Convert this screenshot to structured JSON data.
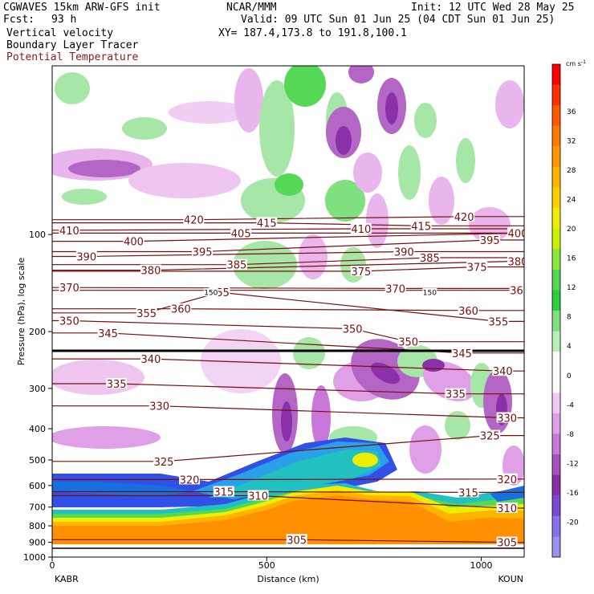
{
  "header": {
    "title_left": "CGWAVES 15km ARW-GFS init",
    "fcst_label": "Fcst:",
    "fcst_value": "93 h",
    "field1": "Vertical velocity",
    "field2": "Boundary Layer Tracer",
    "field3": "Potential Temperature",
    "center_org": "NCAR/MMM",
    "valid": "Valid: 09 UTC Sun 01 Jun 25 (04 CDT Sun 01 Jun 25)",
    "xy": "XY= 187.4,173.8 to 191.8,100.1",
    "init": "Init: 12 UTC Wed 28 May 25"
  },
  "colors": {
    "theta": "#7a0d0d",
    "pos_w": "#2ecc40",
    "neg_w": "#a040b0",
    "tracer": "#ff8c00"
  },
  "chart_data": {
    "type": "heatmap",
    "ylabel": "Pressure (hPa), log scale",
    "xlabel": "Distance (km)",
    "x_left_label": "KABR",
    "x_right_label": "KOUN",
    "xlim": [
      0,
      1100
    ],
    "ylim": [
      1000,
      30
    ],
    "y_scale": "log",
    "x_ticks": [
      "0",
      "500",
      "1000"
    ],
    "y_ticks": [
      "100",
      "200",
      "300",
      "400",
      "500",
      "600",
      "700",
      "800",
      "900",
      "1000"
    ],
    "colorbar": {
      "unit": "cm s",
      "unit_exp": "-1",
      "ticks": [
        "36",
        "32",
        "28",
        "24",
        "20",
        "16",
        "12",
        "8",
        "4",
        "0",
        "-4",
        "-8",
        "-12",
        "-16",
        "-20"
      ],
      "colors": [
        "#ff0000",
        "#ff3000",
        "#ff5a00",
        "#ff7a00",
        "#ff9800",
        "#ffb400",
        "#ffd000",
        "#f0ee00",
        "#c8f000",
        "#8ee63c",
        "#55d855",
        "#2ecc40",
        "#7ee07e",
        "#b6f0b6",
        "#ffffff",
        "#ffffff",
        "#f2c8f2",
        "#e0a0e8",
        "#c878d8",
        "#a650c0",
        "#8a30a8",
        "#7a4ad0",
        "#8a70e8",
        "#9a90f0"
      ]
    },
    "theta_labels": [
      {
        "label": "420",
        "x": 330,
        "p": 90
      },
      {
        "label": "415",
        "x": 500,
        "p": 92
      },
      {
        "label": "420",
        "x": 960,
        "p": 88
      },
      {
        "label": "410",
        "x": 40,
        "p": 97
      },
      {
        "label": "405",
        "x": 440,
        "p": 99
      },
      {
        "label": "410",
        "x": 720,
        "p": 96
      },
      {
        "label": "415",
        "x": 860,
        "p": 94
      },
      {
        "label": "400",
        "x": 190,
        "p": 105
      },
      {
        "label": "395",
        "x": 1020,
        "p": 104
      },
      {
        "label": "400",
        "x": 1085,
        "p": 99
      },
      {
        "label": "390",
        "x": 80,
        "p": 117
      },
      {
        "label": "395",
        "x": 350,
        "p": 113
      },
      {
        "label": "390",
        "x": 820,
        "p": 113
      },
      {
        "label": "385",
        "x": 880,
        "p": 118
      },
      {
        "label": "380",
        "x": 230,
        "p": 129
      },
      {
        "label": "385",
        "x": 430,
        "p": 124
      },
      {
        "label": "375",
        "x": 720,
        "p": 130
      },
      {
        "label": "375",
        "x": 990,
        "p": 126
      },
      {
        "label": "380",
        "x": 1085,
        "p": 121
      },
      {
        "label": "370",
        "x": 40,
        "p": 146
      },
      {
        "label": "355",
        "x": 390,
        "p": 151
      },
      {
        "label": "370",
        "x": 800,
        "p": 147
      },
      {
        "label": "365",
        "x": 1090,
        "p": 149
      },
      {
        "label": "360",
        "x": 300,
        "p": 170
      },
      {
        "label": "360",
        "x": 970,
        "p": 172
      },
      {
        "label": "350",
        "x": 40,
        "p": 185
      },
      {
        "label": "355",
        "x": 220,
        "p": 175
      },
      {
        "label": "355",
        "x": 1040,
        "p": 186
      },
      {
        "label": "345",
        "x": 130,
        "p": 202
      },
      {
        "label": "350",
        "x": 700,
        "p": 196
      },
      {
        "label": "350",
        "x": 830,
        "p": 215
      },
      {
        "label": "340",
        "x": 230,
        "p": 243
      },
      {
        "label": "345",
        "x": 955,
        "p": 233
      },
      {
        "label": "340",
        "x": 1050,
        "p": 265
      },
      {
        "label": "335",
        "x": 150,
        "p": 290
      },
      {
        "label": "335",
        "x": 940,
        "p": 312
      },
      {
        "label": "330",
        "x": 250,
        "p": 340
      },
      {
        "label": "330",
        "x": 1060,
        "p": 370
      },
      {
        "label": "325",
        "x": 260,
        "p": 505
      },
      {
        "label": "325",
        "x": 1020,
        "p": 420
      },
      {
        "label": "320",
        "x": 320,
        "p": 575
      },
      {
        "label": "320",
        "x": 1060,
        "p": 573
      },
      {
        "label": "315",
        "x": 400,
        "p": 627
      },
      {
        "label": "310",
        "x": 480,
        "p": 645
      },
      {
        "label": "315",
        "x": 970,
        "p": 630
      },
      {
        "label": "310",
        "x": 1060,
        "p": 705
      },
      {
        "label": "305",
        "x": 570,
        "p": 883
      },
      {
        "label": "305",
        "x": 1060,
        "p": 900
      }
    ],
    "tropopause_labels": [
      {
        "label": "150",
        "x": 370,
        "p": 151
      },
      {
        "label": "150",
        "x": 880,
        "p": 151
      }
    ],
    "grid": false,
    "legend": "right colorbar"
  }
}
